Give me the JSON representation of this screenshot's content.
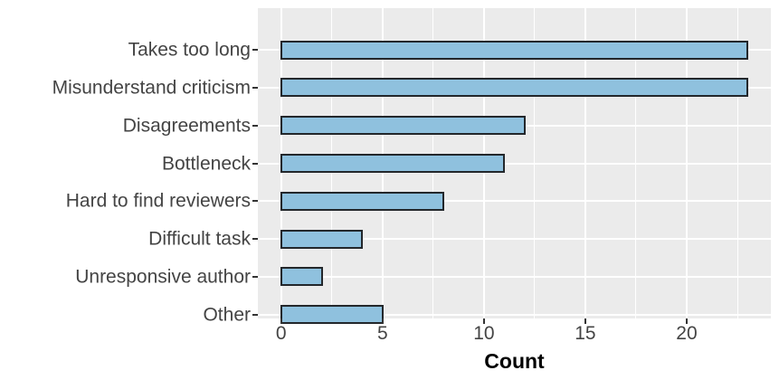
{
  "chart_data": {
    "type": "bar",
    "orientation": "horizontal",
    "title": "",
    "categories": [
      "Takes too long",
      "Misunderstand criticism",
      "Disagreements",
      "Bottleneck",
      "Hard to find reviewers",
      "Difficult task",
      "Unresponsive author",
      "Other"
    ],
    "values": [
      23,
      23,
      12,
      11,
      8,
      4,
      2,
      5
    ],
    "xlabel": "Count",
    "ylabel": "",
    "xlim": [
      -1.15,
      24.15
    ],
    "x_major_ticks": [
      0,
      5,
      10,
      15,
      20
    ],
    "x_major_tick_labels": [
      "0",
      "5",
      "10",
      "15",
      "20"
    ],
    "x_minor_ticks": [
      2.5,
      7.5,
      12.5,
      17.5,
      22.5
    ],
    "grid": true,
    "legend": "none",
    "colors": {
      "bar_fill": "#8FC1DE",
      "bar_stroke": "#23272B",
      "panel_background": "#EBEBEB",
      "gridline": "#FFFFFF",
      "axis_text": "#444444",
      "axis_title": "#000000",
      "tick_mark": "#333333",
      "figure_background": "#FFFFFF"
    }
  }
}
